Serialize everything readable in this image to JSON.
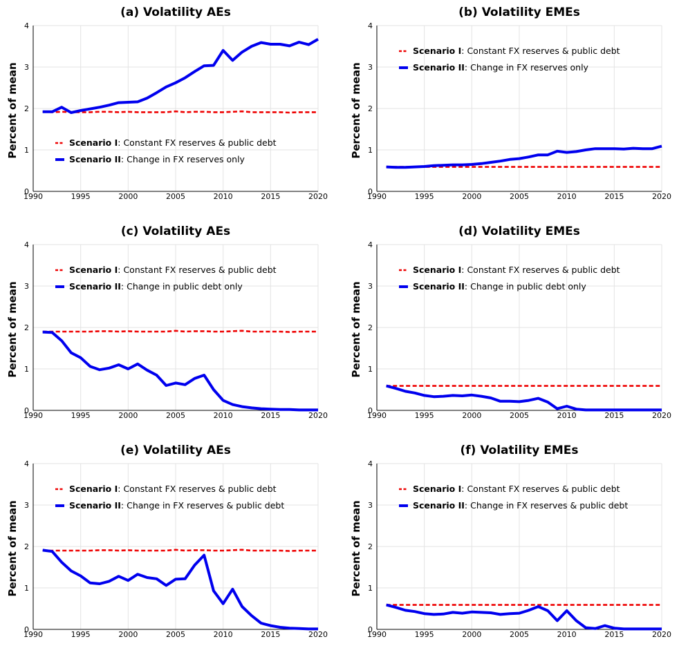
{
  "chart_data": [
    {
      "id": "a",
      "type": "line",
      "title": "(a) Volatility AEs",
      "ylabel": "Percent of mean",
      "xlabel": "",
      "xlim": [
        1990,
        2020
      ],
      "ylim": [
        0,
        4
      ],
      "xticks": [
        1990,
        1995,
        2000,
        2005,
        2010,
        2015,
        2020
      ],
      "yticks": [
        0,
        1,
        2,
        3,
        4
      ],
      "grid": true,
      "legend_placement": "lower-left",
      "x": [
        1991,
        1992,
        1993,
        1994,
        1995,
        1996,
        1997,
        1998,
        1999,
        2000,
        2001,
        2002,
        2003,
        2004,
        2005,
        2006,
        2007,
        2008,
        2009,
        2010,
        2011,
        2012,
        2013,
        2014,
        2015,
        2016,
        2017,
        2018,
        2019,
        2020
      ],
      "series": [
        {
          "name_bold": "Scenario I",
          "name_rest": ": Constant FX reserves & public debt",
          "color": "#ee0000",
          "style": "dashed",
          "values": [
            1.92,
            1.91,
            1.92,
            1.91,
            1.91,
            1.91,
            1.92,
            1.92,
            1.91,
            1.92,
            1.91,
            1.91,
            1.91,
            1.91,
            1.93,
            1.91,
            1.92,
            1.92,
            1.91,
            1.91,
            1.92,
            1.93,
            1.91,
            1.91,
            1.91,
            1.91,
            1.9,
            1.91,
            1.91,
            1.91
          ]
        },
        {
          "name_bold": "Scenario II",
          "name_rest": ": Change in FX reserves only",
          "color": "#0000ee",
          "style": "solid",
          "values": [
            1.92,
            1.92,
            2.03,
            1.9,
            1.95,
            1.99,
            2.03,
            2.08,
            2.14,
            2.15,
            2.16,
            2.25,
            2.38,
            2.52,
            2.62,
            2.74,
            2.89,
            3.03,
            3.04,
            3.4,
            3.16,
            3.36,
            3.5,
            3.59,
            3.55,
            3.55,
            3.51,
            3.6,
            3.54,
            3.67
          ]
        }
      ]
    },
    {
      "id": "b",
      "type": "line",
      "title": "(b) Volatility EMEs",
      "ylabel": "Percent of mean",
      "xlabel": "",
      "xlim": [
        1990,
        2020
      ],
      "ylim": [
        0,
        4
      ],
      "xticks": [
        1990,
        1995,
        2000,
        2005,
        2010,
        2015,
        2020
      ],
      "yticks": [
        0,
        1,
        2,
        3,
        4
      ],
      "grid": true,
      "legend_placement": "upper-left",
      "x": [
        1991,
        1992,
        1993,
        1994,
        1995,
        1996,
        1997,
        1998,
        1999,
        2000,
        2001,
        2002,
        2003,
        2004,
        2005,
        2006,
        2007,
        2008,
        2009,
        2010,
        2011,
        2012,
        2013,
        2014,
        2015,
        2016,
        2017,
        2018,
        2019,
        2020
      ],
      "series": [
        {
          "name_bold": "Scenario I",
          "name_rest": ": Constant FX reserves & public debt",
          "color": "#ee0000",
          "style": "dashed",
          "values": [
            0.59,
            0.59,
            0.59,
            0.59,
            0.59,
            0.59,
            0.59,
            0.59,
            0.59,
            0.59,
            0.59,
            0.59,
            0.59,
            0.59,
            0.59,
            0.59,
            0.59,
            0.59,
            0.59,
            0.59,
            0.59,
            0.59,
            0.59,
            0.59,
            0.59,
            0.59,
            0.59,
            0.59,
            0.59,
            0.59
          ]
        },
        {
          "name_bold": "Scenario II",
          "name_rest": ": Change in FX reserves only",
          "color": "#0000ee",
          "style": "solid",
          "values": [
            0.59,
            0.58,
            0.58,
            0.59,
            0.6,
            0.62,
            0.63,
            0.64,
            0.64,
            0.65,
            0.67,
            0.7,
            0.73,
            0.77,
            0.79,
            0.83,
            0.88,
            0.88,
            0.97,
            0.94,
            0.96,
            1.0,
            1.03,
            1.03,
            1.03,
            1.02,
            1.04,
            1.03,
            1.03,
            1.09
          ]
        }
      ]
    },
    {
      "id": "c",
      "type": "line",
      "title": "(c) Volatility AEs",
      "ylabel": "Percent of mean",
      "xlabel": "",
      "xlim": [
        1990,
        2020
      ],
      "ylim": [
        0,
        4
      ],
      "xticks": [
        1990,
        1995,
        2000,
        2005,
        2010,
        2015,
        2020
      ],
      "yticks": [
        0,
        1,
        2,
        3,
        4
      ],
      "grid": true,
      "legend_placement": "upper-left",
      "x": [
        1991,
        1992,
        1993,
        1994,
        1995,
        1996,
        1997,
        1998,
        1999,
        2000,
        2001,
        2002,
        2003,
        2004,
        2005,
        2006,
        2007,
        2008,
        2009,
        2010,
        2011,
        2012,
        2013,
        2014,
        2015,
        2016,
        2017,
        2018,
        2019,
        2020
      ],
      "series": [
        {
          "name_bold": "Scenario I",
          "name_rest": ": Constant FX reserves & public debt",
          "color": "#ee0000",
          "style": "dashed",
          "values": [
            1.9,
            1.9,
            1.9,
            1.9,
            1.9,
            1.9,
            1.91,
            1.91,
            1.9,
            1.91,
            1.9,
            1.9,
            1.9,
            1.9,
            1.92,
            1.9,
            1.91,
            1.91,
            1.9,
            1.9,
            1.91,
            1.92,
            1.9,
            1.9,
            1.9,
            1.9,
            1.89,
            1.9,
            1.9,
            1.9
          ]
        },
        {
          "name_bold": "Scenario II",
          "name_rest": ": Change in public debt only",
          "color": "#0000ee",
          "style": "solid",
          "values": [
            1.89,
            1.88,
            1.68,
            1.39,
            1.27,
            1.06,
            0.98,
            1.02,
            1.1,
            1.0,
            1.12,
            0.97,
            0.85,
            0.6,
            0.66,
            0.62,
            0.77,
            0.85,
            0.5,
            0.24,
            0.14,
            0.09,
            0.06,
            0.04,
            0.03,
            0.02,
            0.02,
            0.01,
            0.01,
            0.01
          ]
        }
      ]
    },
    {
      "id": "d",
      "type": "line",
      "title": "(d) Volatility EMEs",
      "ylabel": "Percent of mean",
      "xlabel": "",
      "xlim": [
        1990,
        2020
      ],
      "ylim": [
        0,
        4
      ],
      "xticks": [
        1990,
        1995,
        2000,
        2005,
        2010,
        2015,
        2020
      ],
      "yticks": [
        0,
        1,
        2,
        3,
        4
      ],
      "grid": true,
      "legend_placement": "upper-left",
      "x": [
        1991,
        1992,
        1993,
        1994,
        1995,
        1996,
        1997,
        1998,
        1999,
        2000,
        2001,
        2002,
        2003,
        2004,
        2005,
        2006,
        2007,
        2008,
        2009,
        2010,
        2011,
        2012,
        2013,
        2014,
        2015,
        2016,
        2017,
        2018,
        2019,
        2020
      ],
      "series": [
        {
          "name_bold": "Scenario I",
          "name_rest": ": Constant FX reserves & public debt",
          "color": "#ee0000",
          "style": "dashed",
          "values": [
            0.59,
            0.59,
            0.59,
            0.59,
            0.59,
            0.59,
            0.59,
            0.59,
            0.59,
            0.59,
            0.59,
            0.59,
            0.59,
            0.59,
            0.59,
            0.59,
            0.59,
            0.59,
            0.59,
            0.59,
            0.59,
            0.59,
            0.59,
            0.59,
            0.59,
            0.59,
            0.59,
            0.59,
            0.59,
            0.59
          ]
        },
        {
          "name_bold": "Scenario II",
          "name_rest": ": Change in public debt only",
          "color": "#0000ee",
          "style": "solid",
          "values": [
            0.59,
            0.53,
            0.46,
            0.42,
            0.36,
            0.33,
            0.34,
            0.36,
            0.35,
            0.37,
            0.34,
            0.3,
            0.22,
            0.22,
            0.21,
            0.24,
            0.29,
            0.2,
            0.04,
            0.1,
            0.03,
            0.01,
            0.01,
            0.01,
            0.01,
            0.01,
            0.01,
            0.01,
            0.01,
            0.01
          ]
        }
      ]
    },
    {
      "id": "e",
      "type": "line",
      "title": "(e) Volatility AEs",
      "ylabel": "Percent of mean",
      "xlabel": "",
      "xlim": [
        1990,
        2020
      ],
      "ylim": [
        0,
        4
      ],
      "xticks": [
        1990,
        1995,
        2000,
        2005,
        2010,
        2015,
        2020
      ],
      "yticks": [
        0,
        1,
        2,
        3,
        4
      ],
      "grid": true,
      "legend_placement": "upper-left",
      "x": [
        1991,
        1992,
        1993,
        1994,
        1995,
        1996,
        1997,
        1998,
        1999,
        2000,
        2001,
        2002,
        2003,
        2004,
        2005,
        2006,
        2007,
        2008,
        2009,
        2010,
        2011,
        2012,
        2013,
        2014,
        2015,
        2016,
        2017,
        2018,
        2019,
        2020
      ],
      "series": [
        {
          "name_bold": "Scenario I",
          "name_rest": ": Constant FX reserves & public debt",
          "color": "#ee0000",
          "style": "dashed",
          "values": [
            1.9,
            1.9,
            1.9,
            1.9,
            1.9,
            1.9,
            1.91,
            1.91,
            1.9,
            1.91,
            1.9,
            1.9,
            1.9,
            1.9,
            1.92,
            1.9,
            1.91,
            1.91,
            1.9,
            1.9,
            1.91,
            1.92,
            1.9,
            1.9,
            1.9,
            1.9,
            1.89,
            1.9,
            1.9,
            1.9
          ]
        },
        {
          "name_bold": "Scenario II",
          "name_rest": ": Change in FX reserves & public debt",
          "color": "#0000ee",
          "style": "solid",
          "values": [
            1.91,
            1.88,
            1.62,
            1.41,
            1.29,
            1.12,
            1.1,
            1.16,
            1.28,
            1.18,
            1.33,
            1.25,
            1.22,
            1.06,
            1.21,
            1.22,
            1.55,
            1.79,
            0.93,
            0.62,
            0.97,
            0.55,
            0.33,
            0.15,
            0.09,
            0.05,
            0.03,
            0.02,
            0.01,
            0.01
          ]
        }
      ]
    },
    {
      "id": "f",
      "type": "line",
      "title": "(f) Volatility EMEs",
      "ylabel": "Percent of mean",
      "xlabel": "",
      "xlim": [
        1990,
        2020
      ],
      "ylim": [
        0,
        4
      ],
      "xticks": [
        1990,
        1995,
        2000,
        2005,
        2010,
        2015,
        2020
      ],
      "yticks": [
        0,
        1,
        2,
        3,
        4
      ],
      "grid": true,
      "legend_placement": "upper-left",
      "x": [
        1991,
        1992,
        1993,
        1994,
        1995,
        1996,
        1997,
        1998,
        1999,
        2000,
        2001,
        2002,
        2003,
        2004,
        2005,
        2006,
        2007,
        2008,
        2009,
        2010,
        2011,
        2012,
        2013,
        2014,
        2015,
        2016,
        2017,
        2018,
        2019,
        2020
      ],
      "series": [
        {
          "name_bold": "Scenario I",
          "name_rest": ": Constant FX reserves & public debt",
          "color": "#ee0000",
          "style": "dashed",
          "values": [
            0.59,
            0.59,
            0.59,
            0.59,
            0.59,
            0.59,
            0.59,
            0.59,
            0.59,
            0.59,
            0.59,
            0.59,
            0.59,
            0.59,
            0.59,
            0.59,
            0.59,
            0.59,
            0.59,
            0.59,
            0.59,
            0.59,
            0.59,
            0.59,
            0.59,
            0.59,
            0.59,
            0.59,
            0.59,
            0.59
          ]
        },
        {
          "name_bold": "Scenario II",
          "name_rest": ": Change in FX reserves & public debt",
          "color": "#0000ee",
          "style": "solid",
          "values": [
            0.59,
            0.53,
            0.46,
            0.43,
            0.38,
            0.36,
            0.37,
            0.41,
            0.39,
            0.42,
            0.41,
            0.4,
            0.36,
            0.38,
            0.39,
            0.46,
            0.55,
            0.45,
            0.21,
            0.45,
            0.21,
            0.04,
            0.02,
            0.09,
            0.03,
            0.01,
            0.01,
            0.01,
            0.01,
            0.01
          ]
        }
      ]
    }
  ]
}
